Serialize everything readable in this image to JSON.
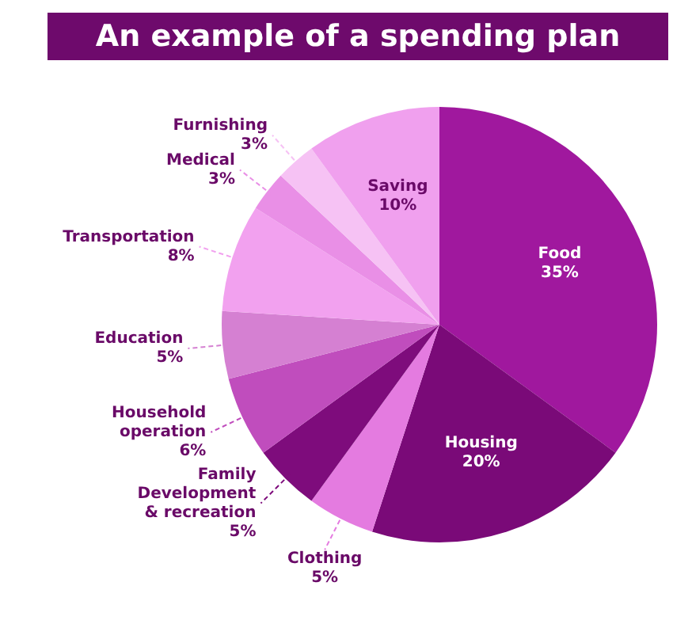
{
  "chart_data": {
    "type": "pie",
    "title": "An example of a spending plan",
    "categories": [
      "Food",
      "Housing",
      "Clothing",
      "Family Development & recreation",
      "Household operation",
      "Education",
      "Transportation",
      "Medical",
      "Furnishing",
      "Saving"
    ],
    "values": [
      35,
      20,
      5,
      5,
      6,
      5,
      8,
      3,
      3,
      10
    ],
    "value_labels": [
      "35%",
      "20%",
      "5%",
      "5%",
      "6%",
      "5%",
      "8%",
      "3%",
      "3%",
      "10%"
    ],
    "colors": [
      "#a0189e",
      "#7a0a78",
      "#e47be0",
      "#7e0c7c",
      "#c04dbd",
      "#d580d2",
      "#f2a1ef",
      "#e98fe6",
      "#f6c2f4",
      "#f0a0ee"
    ],
    "legend": false
  }
}
